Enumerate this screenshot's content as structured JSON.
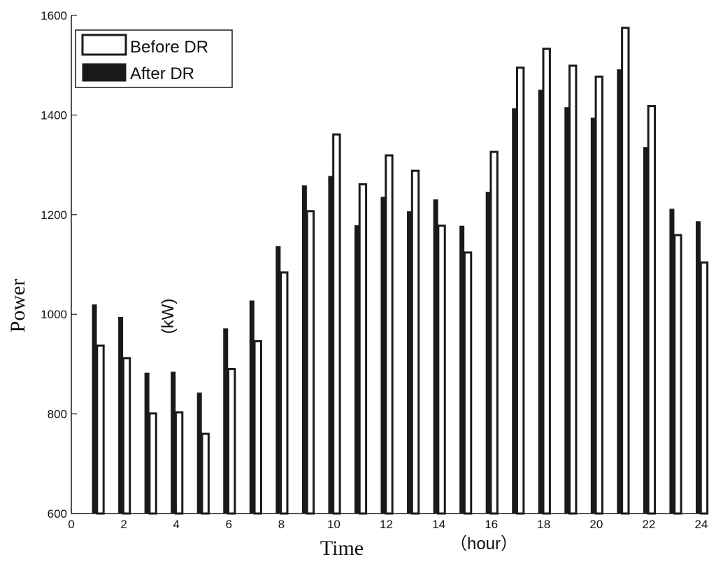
{
  "chart_data": {
    "type": "bar",
    "title": "",
    "xlabel": "Time",
    "xlabel_unit": "（hour）",
    "ylabel": "Power",
    "ylabel_unit": "(kW)",
    "xlim": [
      0,
      24
    ],
    "ylim": [
      600,
      1600
    ],
    "x_ticks": [
      0,
      2,
      4,
      6,
      8,
      10,
      12,
      14,
      16,
      18,
      20,
      22,
      24
    ],
    "y_ticks": [
      600,
      800,
      1000,
      1200,
      1400,
      1600
    ],
    "x_tick_labels": [
      "0",
      "2",
      "4",
      "6",
      "8",
      "10",
      "12",
      "14",
      "16",
      "18",
      "20",
      "22",
      "24"
    ],
    "y_tick_labels": [
      "600",
      "800",
      "1000",
      "1200",
      "1400",
      "1600"
    ],
    "grid": false,
    "legend_position": "top-left",
    "categories": [
      1,
      2,
      3,
      4,
      5,
      6,
      7,
      8,
      9,
      10,
      11,
      12,
      13,
      14,
      15,
      16,
      17,
      18,
      19,
      20,
      21,
      22,
      23,
      24
    ],
    "series": [
      {
        "name": "Before DR",
        "style": "outline",
        "color": "#ffffff",
        "edge_color": "#1a1a1a",
        "values": [
          937,
          912,
          801,
          803,
          760,
          890,
          946,
          1084,
          1207,
          1361,
          1261,
          1319,
          1288,
          1178,
          1124,
          1326,
          1495,
          1533,
          1499,
          1477,
          1575,
          1418,
          1159,
          1104
        ]
      },
      {
        "name": "After DR",
        "style": "filled",
        "color": "#1a1a1a",
        "edge_color": "#1a1a1a",
        "values": [
          1019,
          994,
          882,
          884,
          842,
          971,
          1027,
          1136,
          1258,
          1277,
          1178,
          1235,
          1206,
          1230,
          1177,
          1245,
          1413,
          1450,
          1415,
          1394,
          1491,
          1335,
          1211,
          1186
        ]
      }
    ]
  }
}
